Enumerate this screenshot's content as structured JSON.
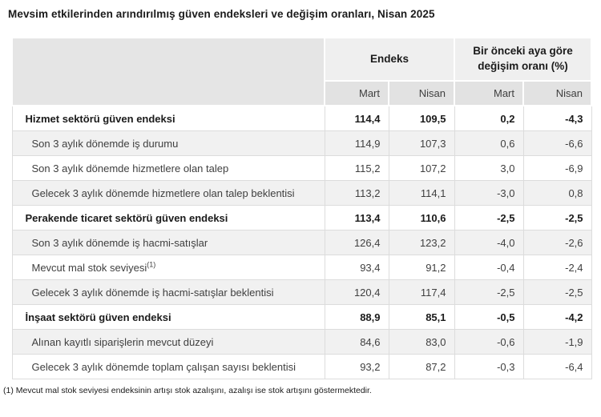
{
  "title": "Mevsim etkilerinden arındırılmış güven endeksleri ve değişim oranları, Nisan 2025",
  "table": {
    "column_groups": [
      {
        "label": "Endeks"
      },
      {
        "label": "Bir önceki aya göre değişim oranı (%)"
      }
    ],
    "sub_headers": [
      "Mart",
      "Nisan",
      "Mart",
      "Nisan"
    ],
    "rows": [
      {
        "label": "Hizmet sektörü güven endeksi",
        "bold": true,
        "values": [
          "114,4",
          "109,5",
          "0,2",
          "-4,3"
        ]
      },
      {
        "label": "Son 3 aylık dönemde iş durumu",
        "bold": false,
        "values": [
          "114,9",
          "107,3",
          "0,6",
          "-6,6"
        ]
      },
      {
        "label": "Son 3 aylık dönemde hizmetlere olan talep",
        "bold": false,
        "values": [
          "115,2",
          "107,2",
          "3,0",
          "-6,9"
        ]
      },
      {
        "label": "Gelecek 3 aylık dönemde hizmetlere olan talep beklentisi",
        "bold": false,
        "values": [
          "113,2",
          "114,1",
          "-3,0",
          "0,8"
        ]
      },
      {
        "label": "Perakende ticaret sektörü güven endeksi",
        "bold": true,
        "values": [
          "113,4",
          "110,6",
          "-2,5",
          "-2,5"
        ]
      },
      {
        "label": "Son 3 aylık dönemde iş hacmi-satışlar",
        "bold": false,
        "values": [
          "126,4",
          "123,2",
          "-4,0",
          "-2,6"
        ]
      },
      {
        "label": "Mevcut mal stok seviyesi",
        "sup": "(1)",
        "bold": false,
        "values": [
          "93,4",
          "91,2",
          "-0,4",
          "-2,4"
        ]
      },
      {
        "label": "Gelecek 3 aylık dönemde iş hacmi-satışlar beklentisi",
        "bold": false,
        "values": [
          "120,4",
          "117,4",
          "-2,5",
          "-2,5"
        ]
      },
      {
        "label": "İnşaat sektörü güven endeksi",
        "bold": true,
        "values": [
          "88,9",
          "85,1",
          "-0,5",
          "-4,2"
        ]
      },
      {
        "label": "Alınan kayıtlı siparişlerin mevcut düzeyi",
        "bold": false,
        "values": [
          "84,6",
          "83,0",
          "-0,6",
          "-1,9"
        ]
      },
      {
        "label": "Gelecek 3 aylık dönemde toplam çalışan sayısı beklentisi",
        "bold": false,
        "values": [
          "93,2",
          "87,2",
          "-0,3",
          "-6,4"
        ]
      }
    ]
  },
  "footnote": "(1) Mevcut mal stok seviyesi endeksinin artışı stok azalışını, azalışı ise stok artışını göstermektedir."
}
